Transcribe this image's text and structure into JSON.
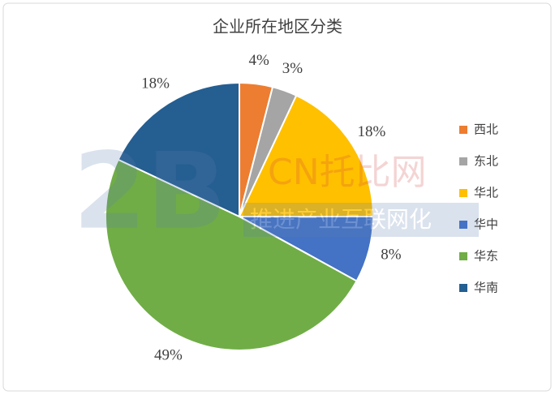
{
  "chart_data": {
    "type": "pie",
    "title": "企业所在地区分类",
    "categories": [
      "西北",
      "东北",
      "华北",
      "华中",
      "华东",
      "华南"
    ],
    "values": [
      4,
      3,
      18,
      8,
      49,
      18
    ],
    "value_labels": [
      "4%",
      "3%",
      "18%",
      "8%",
      "49%",
      "18%"
    ],
    "colors": [
      "#ed7d31",
      "#a5a5a5",
      "#ffc000",
      "#4472c4",
      "#70ad47",
      "#255e91"
    ],
    "legend": "right"
  },
  "watermark": [
    "2B",
    "CN托比网",
    "推进产业互联网化"
  ]
}
